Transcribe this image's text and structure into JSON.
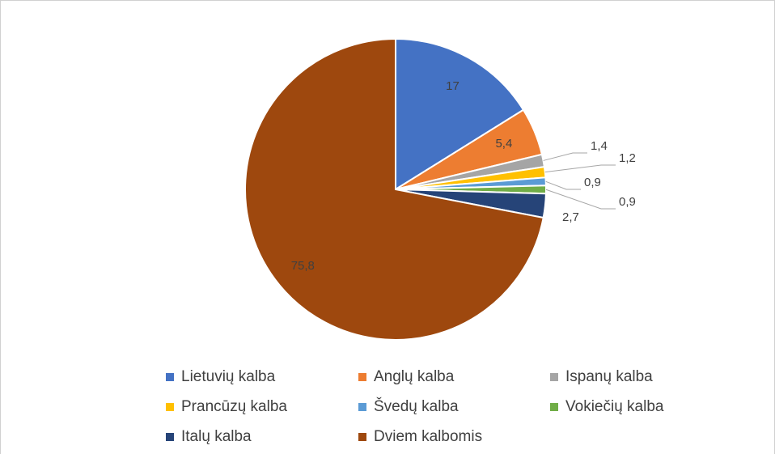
{
  "chart_data": {
    "type": "pie",
    "categories": [
      "Lietuvių kalba",
      "Anglų kalba",
      "Ispanų kalba",
      "Prancūzų kalba",
      "Švedų kalba",
      "Vokiečių kalba",
      "Italų kalba",
      "Dviem kalbomis"
    ],
    "values": [
      17,
      5.4,
      1.4,
      1.2,
      0.9,
      0.9,
      2.7,
      75.8
    ],
    "value_labels": [
      "17",
      "5,4",
      "1,4",
      "1,2",
      "0,9",
      "0,9",
      "2,7",
      "75,8"
    ],
    "colors": [
      "#4472c4",
      "#ed7d31",
      "#a5a5a5",
      "#ffc000",
      "#5b9bd5",
      "#70ad47",
      "#264478",
      "#9e480e"
    ],
    "legend": "bottom"
  }
}
